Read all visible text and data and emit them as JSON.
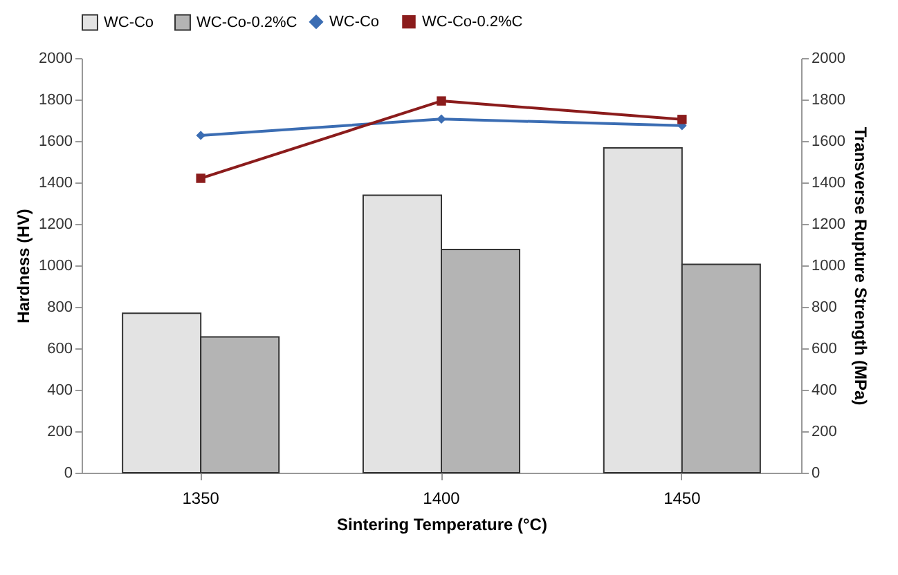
{
  "chart_data": {
    "type": "bar",
    "xlabel": "Sintering Temperature (°C)",
    "ylabel": "Hardness (HV)",
    "y2label": "Transverse Rupture Strength (MPa)",
    "categories": [
      "1350",
      "1400",
      "1450"
    ],
    "series": [
      {
        "name": "WC-Co",
        "color": "#e3e3e3",
        "values": [
          769,
          1338,
          1567
        ]
      },
      {
        "name": "WC-Co-0.2%C",
        "color": "#b4b4b4",
        "values": [
          655,
          1077,
          1005
        ]
      },
      {
        "name": "WC-Co",
        "type": "line",
        "axis": "y2",
        "marker": "diamond",
        "color": "#3b6db3",
        "values": [
          1627,
          1706,
          1674
        ]
      },
      {
        "name": "WC-Co-0.2%C",
        "type": "line",
        "axis": "y2",
        "marker": "square",
        "color": "#8b1c1c",
        "values": [
          1420,
          1793,
          1704
        ]
      }
    ],
    "ylim": [
      0,
      2000
    ],
    "yticks": [
      0,
      200,
      400,
      600,
      800,
      1000,
      1200,
      1400,
      1600,
      1800,
      2000
    ],
    "y2lim": [
      0,
      2000
    ],
    "y2ticks": [
      0,
      200,
      400,
      600,
      800,
      1000,
      1200,
      1400,
      1600,
      1800,
      2000
    ],
    "legend": "top",
    "grid": false
  }
}
